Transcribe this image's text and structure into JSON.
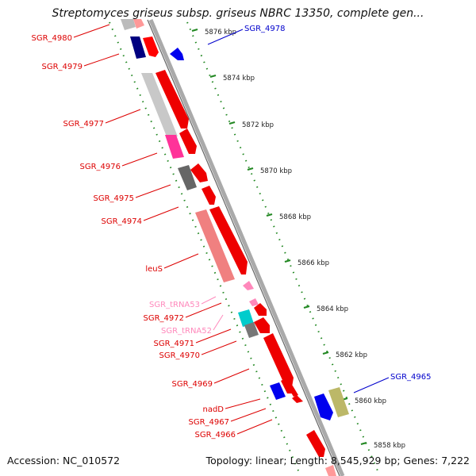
{
  "title": "Streptomyces griseus subsp. griseus NBRC 13350, complete gen...",
  "footer": {
    "accession": "Accession: NC_010572",
    "summary": "Topology: linear; Length: 8,545,929 bp; Genes: 7,222"
  },
  "colors": {
    "forward_gene": "#ff0000",
    "reverse_gene_blue": "#0000ee",
    "trna": "#ff99cc",
    "rrna_like": "#ff69b4",
    "backbone": "#999999"
  },
  "scale": {
    "ticks": [
      "5876 kbp",
      "5874 kbp",
      "5872 kbp",
      "5870 kbp",
      "5868 kbp",
      "5866 kbp",
      "5864 kbp",
      "5862 kbp",
      "5860 kbp",
      "5858 kbp"
    ]
  },
  "genes": [
    {
      "label": "SGR_4980",
      "color": "#dd0000"
    },
    {
      "label": "SGR_4979",
      "color": "#dd0000"
    },
    {
      "label": "SGR_4978",
      "color": "#0000cc"
    },
    {
      "label": "SGR_4977",
      "color": "#dd0000"
    },
    {
      "label": "SGR_4976",
      "color": "#dd0000"
    },
    {
      "label": "SGR_4975",
      "color": "#dd0000"
    },
    {
      "label": "SGR_4974",
      "color": "#dd0000"
    },
    {
      "label": "leuS",
      "color": "#dd0000"
    },
    {
      "label": "SGR_tRNA53",
      "color": "#ff88bb"
    },
    {
      "label": "SGR_4972",
      "color": "#dd0000"
    },
    {
      "label": "SGR_tRNA52",
      "color": "#ff88bb"
    },
    {
      "label": "SGR_4971",
      "color": "#dd0000"
    },
    {
      "label": "SGR_4970",
      "color": "#dd0000"
    },
    {
      "label": "SGR_4969",
      "color": "#dd0000"
    },
    {
      "label": "SGR_4965",
      "color": "#0000cc"
    },
    {
      "label": "nadD",
      "color": "#dd0000"
    },
    {
      "label": "SGR_4967",
      "color": "#dd0000"
    },
    {
      "label": "SGR_4966",
      "color": "#dd0000"
    }
  ]
}
